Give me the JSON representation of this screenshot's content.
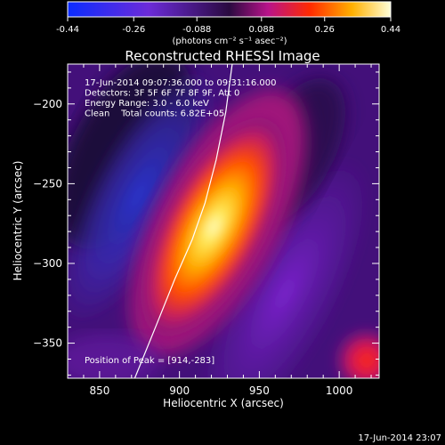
{
  "chart_data": {
    "type": "heatmap",
    "title": "Reconstructed RHESSI Image",
    "xlabel": "Heliocentric X (arcsec)",
    "ylabel": "Heliocentric Y (arcsec)",
    "xlim": [
      830,
      1025
    ],
    "ylim": [
      -372,
      -175
    ],
    "x_ticks": [
      850,
      900,
      950,
      1000
    ],
    "y_ticks": [
      -200,
      -250,
      -300,
      -350
    ],
    "colorbar": {
      "ticks": [
        "-0.44",
        "-0.26",
        "-0.088",
        "0.088",
        "0.26",
        "0.44"
      ],
      "tick_values": [
        -0.44,
        -0.26,
        -0.088,
        0.088,
        0.26,
        0.44
      ],
      "range": [
        -0.44,
        0.44
      ],
      "units": "(photons cm⁻² s⁻¹ asec⁻²)"
    },
    "info_lines": [
      "17-Jun-2014 09:07:36.000 to 09:31:16.000",
      "Detectors: 3F 5F 6F 7F 8F 9F, Att 0",
      "Energy Range: 3.0 - 6.0 keV",
      "Clean    Total counts: 6.82E+05"
    ],
    "peak_label": "Position of Peak = [914,-283]",
    "peak": [
      914,
      -283
    ],
    "limb_curve": [
      [
        872,
        -372
      ],
      [
        885,
        -340
      ],
      [
        897,
        -310
      ],
      [
        908,
        -285
      ],
      [
        916,
        -262
      ],
      [
        923,
        -235
      ],
      [
        929,
        -205
      ],
      [
        933,
        -175
      ]
    ],
    "timestamp": "17-Jun-2014 23:07"
  }
}
